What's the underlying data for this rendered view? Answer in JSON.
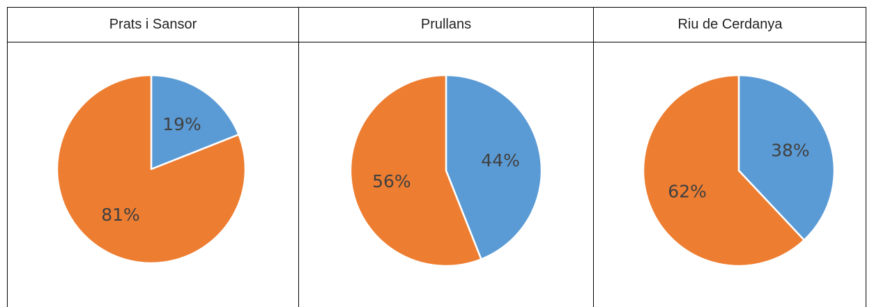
{
  "table": {
    "headers": [
      "Prats i Sansor",
      "Prullans",
      "Riu de Cerdanya"
    ]
  },
  "colors": {
    "series_a": "#5B9BD5",
    "series_b": "#ED7D31",
    "border": "#000000"
  },
  "chart_data": [
    {
      "type": "pie",
      "title": "Prats i Sansor",
      "slices": [
        {
          "label": "19%",
          "value": 19,
          "color": "#5B9BD5"
        },
        {
          "label": "81%",
          "value": 81,
          "color": "#ED7D31"
        }
      ]
    },
    {
      "type": "pie",
      "title": "Prullans",
      "slices": [
        {
          "label": "44%",
          "value": 44,
          "color": "#5B9BD5"
        },
        {
          "label": "56%",
          "value": 56,
          "color": "#ED7D31"
        }
      ]
    },
    {
      "type": "pie",
      "title": "Riu de Cerdanya",
      "slices": [
        {
          "label": "38%",
          "value": 38,
          "color": "#5B9BD5"
        },
        {
          "label": "62%",
          "value": 62,
          "color": "#ED7D31"
        }
      ]
    }
  ]
}
